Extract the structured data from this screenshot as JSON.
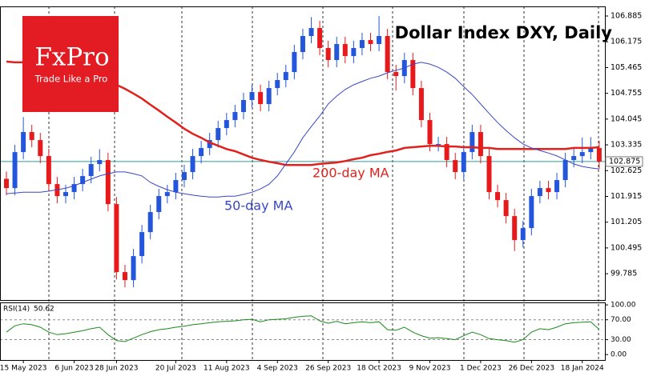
{
  "logo": {
    "name": "FxPro",
    "tagline": "Trade Like a Pro"
  },
  "chart_data": [
    {
      "type": "candlestick",
      "title": "Dollar Index DXY, Daily",
      "categories": [
        null,
        null,
        "15 May 2023",
        null,
        null,
        null,
        null,
        null,
        "6 Jun 2023",
        null,
        null,
        null,
        null,
        "28 Jun 2023",
        null,
        null,
        null,
        null,
        null,
        null,
        "20 Jul 2023",
        null,
        null,
        null,
        null,
        null,
        "11 Aug 2023",
        null,
        null,
        null,
        null,
        null,
        "4 Sep 2023",
        null,
        null,
        null,
        null,
        null,
        "26 Sep 2023",
        null,
        null,
        null,
        null,
        null,
        "18 Oct 2023",
        null,
        null,
        null,
        null,
        null,
        "9 Nov 2023",
        null,
        null,
        null,
        null,
        null,
        "1 Dec 2023",
        null,
        null,
        null,
        null,
        null,
        "26 Dec 2023",
        null,
        null,
        null,
        null,
        null,
        "18 Jan 2024",
        null,
        null
      ],
      "open": [
        102.4,
        102.144,
        103.136,
        103.688,
        103.467,
        103.026,
        102.254,
        101.924,
        102.034,
        102.254,
        102.475,
        102.806,
        102.916,
        101.703,
        99.829,
        99.608,
        100.27,
        100.931,
        101.483,
        101.924,
        102.034,
        102.365,
        102.585,
        103.026,
        103.247,
        103.467,
        103.798,
        104.018,
        104.239,
        104.57,
        104.79,
        104.459,
        104.9,
        105.121,
        105.341,
        105.893,
        106.334,
        106.554,
        106.003,
        105.672,
        106.113,
        105.782,
        106.003,
        106.223,
        106.113,
        106.334,
        105.341,
        105.231,
        105.672,
        104.9,
        104.018,
        103.357,
        103.357,
        102.916,
        102.585,
        103.136,
        103.688,
        103.026,
        102.034,
        101.813,
        101.372,
        100.711,
        101.042,
        101.924,
        102.144,
        102.034,
        102.365,
        102.916,
        103.026,
        103.136,
        103.247
      ],
      "high": [
        102.6,
        103.336,
        104.1,
        103.888,
        103.667,
        103.226,
        102.454,
        102.234,
        102.454,
        102.675,
        103.006,
        103.216,
        103.116,
        101.903,
        100.029,
        100.47,
        101.131,
        101.683,
        102.124,
        102.234,
        102.565,
        102.785,
        103.226,
        103.447,
        103.667,
        103.998,
        104.218,
        104.439,
        104.77,
        104.99,
        104.99,
        105.1,
        105.321,
        105.541,
        106.093,
        106.534,
        106.854,
        106.754,
        106.203,
        106.313,
        106.313,
        106.203,
        106.423,
        106.423,
        106.884,
        106.534,
        105.541,
        105.872,
        105.872,
        105.1,
        104.218,
        103.557,
        103.557,
        103.116,
        103.336,
        103.888,
        103.888,
        103.226,
        102.234,
        102.013,
        101.572,
        101.242,
        102.124,
        102.344,
        102.344,
        102.565,
        103.116,
        103.226,
        103.536,
        103.547,
        103.447
      ],
      "low": [
        101.944,
        101.944,
        102.936,
        103.267,
        102.826,
        102.054,
        101.724,
        101.724,
        101.834,
        102.054,
        102.275,
        102.606,
        101.503,
        99.629,
        99.408,
        99.408,
        100.07,
        100.731,
        101.283,
        101.724,
        101.834,
        102.165,
        102.385,
        102.826,
        103.047,
        103.267,
        103.598,
        103.818,
        104.039,
        104.37,
        104.259,
        104.259,
        104.7,
        104.921,
        105.141,
        105.693,
        106.134,
        105.803,
        105.472,
        105.472,
        105.582,
        105.582,
        105.803,
        105.913,
        105.913,
        105.141,
        104.831,
        105.031,
        104.7,
        103.818,
        103.157,
        103.157,
        102.716,
        102.385,
        102.385,
        102.936,
        102.826,
        101.834,
        101.613,
        101.172,
        100.411,
        100.511,
        100.842,
        101.724,
        101.834,
        101.834,
        102.165,
        102.716,
        102.826,
        102.936,
        102.675
      ],
      "close": [
        102.144,
        103.136,
        103.688,
        103.467,
        103.026,
        102.254,
        101.924,
        102.034,
        102.254,
        102.475,
        102.806,
        102.916,
        101.703,
        99.829,
        99.608,
        100.27,
        100.931,
        101.483,
        101.924,
        102.034,
        102.365,
        102.585,
        103.026,
        103.247,
        103.467,
        103.798,
        104.018,
        104.239,
        104.57,
        104.79,
        104.459,
        104.9,
        105.121,
        105.341,
        105.893,
        106.334,
        106.554,
        106.003,
        105.672,
        106.113,
        105.782,
        106.003,
        106.223,
        106.113,
        106.334,
        105.341,
        105.231,
        105.672,
        104.9,
        104.018,
        103.357,
        103.357,
        102.916,
        102.585,
        103.136,
        103.688,
        103.026,
        102.034,
        101.813,
        101.372,
        100.711,
        101.042,
        101.924,
        102.144,
        102.034,
        102.365,
        102.916,
        103.026,
        103.136,
        103.247,
        102.875
      ],
      "up_color": "#2456dc",
      "down_color": "#e8191b",
      "series": [
        {
          "name": "200-day MA",
          "color": "#e0211d",
          "width": 2.5,
          "values": [
            105.63,
            105.61,
            105.61,
            105.58,
            105.56,
            105.54,
            105.5,
            105.45,
            105.39,
            105.34,
            105.25,
            105.17,
            105.08,
            104.99,
            104.88,
            104.75,
            104.61,
            104.44,
            104.28,
            104.11,
            103.95,
            103.78,
            103.64,
            103.53,
            103.4,
            103.31,
            103.22,
            103.16,
            103.07,
            102.98,
            102.92,
            102.87,
            102.83,
            102.78,
            102.78,
            102.78,
            102.78,
            102.81,
            102.83,
            102.85,
            102.89,
            102.94,
            102.98,
            103.05,
            103.09,
            103.14,
            103.18,
            103.25,
            103.27,
            103.29,
            103.31,
            103.31,
            103.29,
            103.29,
            103.27,
            103.27,
            103.25,
            103.25,
            103.22,
            103.22,
            103.22,
            103.22,
            103.22,
            103.22,
            103.22,
            103.22,
            103.22,
            103.25,
            103.25,
            103.25,
            103.27
          ]
        },
        {
          "name": "50-day MA",
          "color": "#3846c8",
          "width": 1,
          "values": [
            101.99,
            102.01,
            102.03,
            102.03,
            102.03,
            102.06,
            102.1,
            102.14,
            102.21,
            102.3,
            102.39,
            102.48,
            102.54,
            102.59,
            102.59,
            102.54,
            102.48,
            102.3,
            102.19,
            102.1,
            102.03,
            101.99,
            101.95,
            101.92,
            101.9,
            101.9,
            101.92,
            101.92,
            101.97,
            102.03,
            102.12,
            102.25,
            102.48,
            102.81,
            103.14,
            103.53,
            103.84,
            104.13,
            104.46,
            104.68,
            104.86,
            104.99,
            105.08,
            105.17,
            105.23,
            105.32,
            105.39,
            105.45,
            105.56,
            105.61,
            105.56,
            105.47,
            105.34,
            105.17,
            104.94,
            104.72,
            104.46,
            104.2,
            103.95,
            103.73,
            103.53,
            103.36,
            103.25,
            103.18,
            103.11,
            103.03,
            102.92,
            102.81,
            102.74,
            102.7,
            102.67
          ]
        }
      ],
      "last_price": 102.875,
      "last_price_color": "#2a9d9a",
      "ylim": [
        99.06,
        107.15
      ],
      "yticks": [
        99.785,
        100.495,
        101.205,
        101.915,
        102.625,
        103.335,
        104.045,
        104.755,
        105.465,
        106.175,
        106.885
      ]
    },
    {
      "type": "line",
      "label": "RSI(14)",
      "series": [
        {
          "name": "RSI(14)",
          "color": "#1a8a1a",
          "values": [
            45,
            58,
            62,
            60,
            55,
            45,
            40,
            42,
            45,
            48,
            52,
            55,
            40,
            28,
            26,
            33,
            40,
            46,
            50,
            52,
            55,
            57,
            60,
            62,
            64,
            66,
            67,
            68,
            70,
            71,
            66,
            70,
            71,
            72,
            75,
            77,
            78,
            68,
            63,
            67,
            62,
            64,
            66,
            64,
            66,
            50,
            49,
            55,
            45,
            38,
            33,
            34,
            32,
            30,
            38,
            45,
            40,
            32,
            30,
            28,
            25,
            30,
            45,
            52,
            50,
            55,
            62,
            64,
            65,
            66,
            50.62
          ]
        }
      ],
      "ylim": [
        -11,
        105
      ],
      "yticks": [
        {
          "value": 100,
          "label": "100.00"
        },
        {
          "value": 70,
          "label": "70.00"
        },
        {
          "value": 30,
          "label": "30.00"
        },
        {
          "value": 0,
          "label": "0.00"
        }
      ],
      "level_lines": [
        70,
        30
      ]
    }
  ]
}
